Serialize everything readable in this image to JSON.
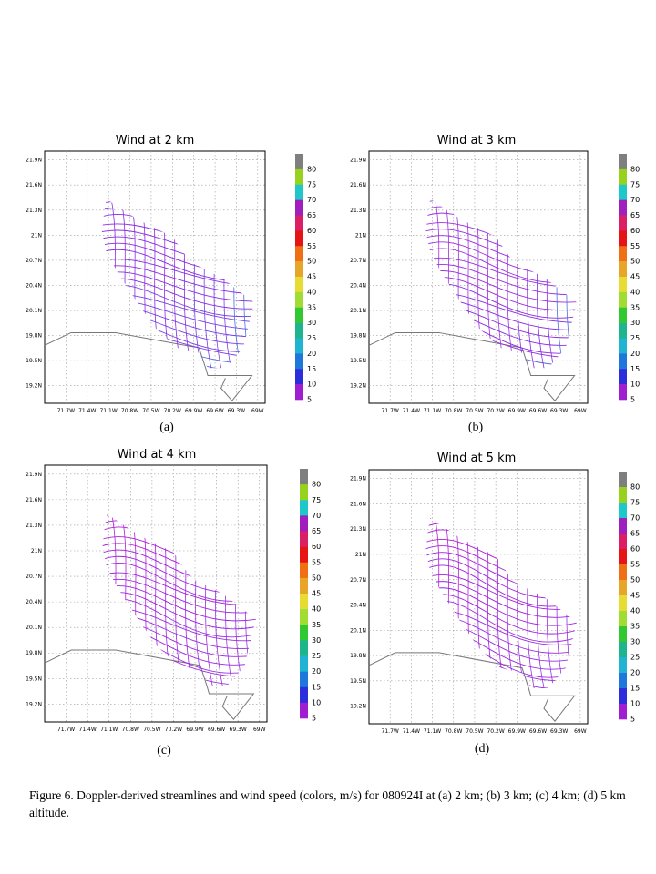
{
  "figure": {
    "caption": "Figure 6.  Doppler-derived streamlines and wind speed (colors, m/s) for 080924I at (a) 2 km; (b) 3 km; (c) 4 km; (d) 5 km altitude.",
    "x_ticks": [
      "71.7W",
      "71.4W",
      "71.1W",
      "70.8W",
      "70.5W",
      "70.2W",
      "69.9W",
      "69.6W",
      "69.3W",
      "69W"
    ],
    "y_ticks": [
      "21.9N",
      "21.6N",
      "21.3N",
      "21N",
      "20.7N",
      "20.4N",
      "20.1N",
      "19.8N",
      "19.5N",
      "19.2N"
    ],
    "colorbar": {
      "labels": [
        "80",
        "75",
        "70",
        "65",
        "60",
        "55",
        "50",
        "45",
        "40",
        "35",
        "30",
        "25",
        "20",
        "15",
        "10",
        "5"
      ],
      "colors": [
        "#7f7f7f",
        "#96d21e",
        "#1ec8c8",
        "#a01ebe",
        "#dc1e64",
        "#e61414",
        "#f06e14",
        "#e8a628",
        "#e6dc32",
        "#a0dc32",
        "#32c832",
        "#1eb48c",
        "#1eb4d2",
        "#1e78dc",
        "#2d2ddc",
        "#a01ed2"
      ]
    },
    "panels": [
      {
        "title": "Wind at 2 km",
        "letter": "(a)",
        "streamline_colors": [
          "#8a2be2",
          "#8a2be2",
          "#7a3fe6",
          "#4a6fe0"
        ]
      },
      {
        "title": "Wind at 3 km",
        "letter": "(b)",
        "streamline_colors": [
          "#9b30e0",
          "#9b30e0",
          "#8a2be2",
          "#4a6fe0"
        ]
      },
      {
        "title": "Wind at 4 km",
        "letter": "(c)",
        "streamline_colors": [
          "#b01ed8",
          "#a020e0",
          "#9b30e0",
          "#9b30e0"
        ]
      },
      {
        "title": "Wind at 5 km",
        "letter": "(d)",
        "streamline_colors": [
          "#b01ed8",
          "#a020e0",
          "#9b30e0",
          "#9b30e0"
        ]
      }
    ]
  }
}
